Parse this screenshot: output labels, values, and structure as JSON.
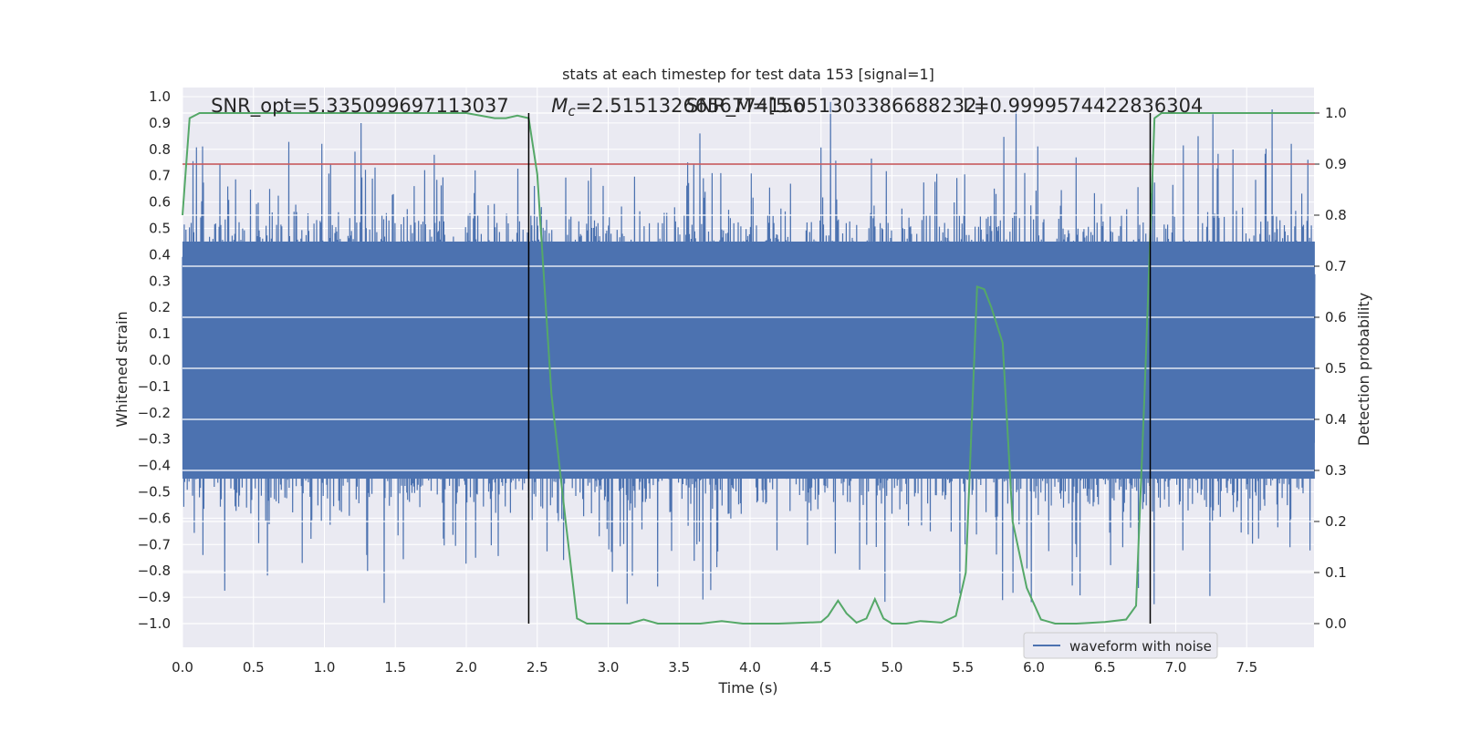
{
  "chart_data": {
    "type": "line",
    "title": "stats at each timestep for test data 153 [signal=1]",
    "xlabel": "Time (s)",
    "ylabel": "Whitened strain",
    "y2label": "Detection probability",
    "xlim": [
      0.0,
      8.0
    ],
    "ylim": [
      -1.1,
      1.05
    ],
    "y2lim": [
      -0.05,
      1.04
    ],
    "xticks": [
      0.0,
      0.5,
      1.0,
      1.5,
      2.0,
      2.5,
      3.0,
      3.5,
      4.0,
      4.5,
      5.0,
      5.5,
      6.0,
      6.5,
      7.0,
      7.5
    ],
    "yticks": [
      1.0,
      0.9,
      0.8,
      0.7,
      0.6,
      0.5,
      0.4,
      0.3,
      0.2,
      0.1,
      0.0,
      -0.1,
      -0.2,
      -0.3,
      -0.4,
      -0.5,
      -0.6,
      -0.7,
      -0.8,
      -0.9,
      -1.0
    ],
    "y2ticks": [
      1.0,
      0.9,
      0.8,
      0.7,
      0.6,
      0.5,
      0.4,
      0.3,
      0.2,
      0.1,
      0.0
    ],
    "grid": true,
    "legend_position": "bottom-right",
    "annotations": [
      {
        "text": "SNR_opt=5.335099697113037",
        "x_data": 0.2
      },
      {
        "text": "M_c=2.5151326656774156",
        "x_data": 2.6
      },
      {
        "text": "SNR_M=[5.051303386688232]",
        "x_data": 3.55
      },
      {
        "text": "L=0.9999574422836304",
        "x_data": 5.5
      }
    ],
    "vlines": [
      2.44,
      6.82
    ],
    "threshold": 0.9,
    "series": [
      {
        "name": "waveform with noise",
        "axis": "left",
        "color": "#4c72b0",
        "kind": "dense-noise",
        "core_range": [
          -0.45,
          0.45
        ],
        "typical_peak_range": [
          -0.75,
          0.7
        ],
        "x_start": 0.0,
        "x_end": 7.98
      },
      {
        "axis": "right",
        "color": "#55a868",
        "x": [
          0.0,
          0.05,
          0.12,
          0.2,
          0.5,
          1.0,
          1.5,
          2.0,
          2.2,
          2.28,
          2.36,
          2.44,
          2.5,
          2.6,
          2.7,
          2.78,
          2.85,
          3.0,
          3.15,
          3.25,
          3.35,
          3.5,
          3.65,
          3.8,
          3.95,
          4.2,
          4.5,
          4.55,
          4.62,
          4.68,
          4.75,
          4.82,
          4.88,
          4.94,
          5.0,
          5.1,
          5.2,
          5.35,
          5.45,
          5.52,
          5.6,
          5.65,
          5.7,
          5.78,
          5.85,
          5.95,
          6.05,
          6.15,
          6.3,
          6.5,
          6.65,
          6.72,
          6.78,
          6.85,
          6.9,
          6.95,
          7.0,
          7.2,
          7.5,
          7.98
        ],
        "values": [
          0.8,
          0.99,
          1.0,
          1.0,
          1.0,
          1.0,
          1.0,
          1.0,
          0.99,
          0.99,
          0.995,
          0.99,
          0.88,
          0.45,
          0.2,
          0.01,
          0.0,
          0.0,
          0.0,
          0.008,
          0.0,
          0.0,
          0.0,
          0.005,
          0.0,
          0.0,
          0.003,
          0.015,
          0.045,
          0.02,
          0.002,
          0.01,
          0.048,
          0.01,
          0.0,
          0.0,
          0.005,
          0.002,
          0.015,
          0.1,
          0.66,
          0.655,
          0.62,
          0.55,
          0.2,
          0.07,
          0.008,
          0.0,
          0.0,
          0.003,
          0.008,
          0.035,
          0.45,
          0.99,
          1.0,
          1.0,
          1.0,
          1.0,
          1.0,
          1.0
        ]
      }
    ]
  },
  "legend": {
    "label": "waveform with noise"
  }
}
